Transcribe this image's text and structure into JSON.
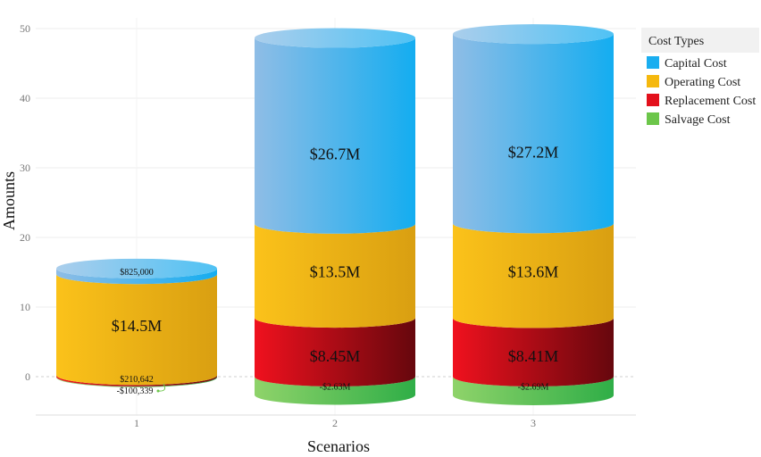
{
  "chart_data": {
    "type": "bar",
    "stacked": true,
    "style": "3d-cylinder",
    "title": "",
    "xlabel": "Scenarios",
    "ylabel": "Amounts",
    "categories": [
      "1",
      "2",
      "3"
    ],
    "ylim": [
      -5,
      50
    ],
    "yticks": [
      "50",
      "40",
      "30",
      "20",
      "10",
      "0"
    ],
    "grid": true,
    "legend": {
      "title": "Cost Types",
      "position": "top-right"
    },
    "series": [
      {
        "name": "Capital Cost",
        "color": "#1aaef0",
        "values": [
          0.825,
          26.7,
          27.2
        ],
        "labels": [
          "$825,000",
          "$26.7M",
          "$27.2M"
        ]
      },
      {
        "name": "Operating Cost",
        "color": "#f5b80e",
        "values": [
          14.5,
          13.5,
          13.6
        ],
        "labels": [
          "$14.5M",
          "$13.5M",
          "$13.6M"
        ]
      },
      {
        "name": "Replacement Cost",
        "color": "#e3101c",
        "values": [
          0.210642,
          8.45,
          8.41
        ],
        "labels": [
          "$210,642",
          "$8.45M",
          "$8.41M"
        ]
      },
      {
        "name": "Salvage Cost",
        "color": "#6cc64a",
        "values": [
          -0.100339,
          -2.63,
          -2.69
        ],
        "labels": [
          "-$100,339",
          "-$2.63M",
          "-$2.69M"
        ]
      }
    ]
  }
}
